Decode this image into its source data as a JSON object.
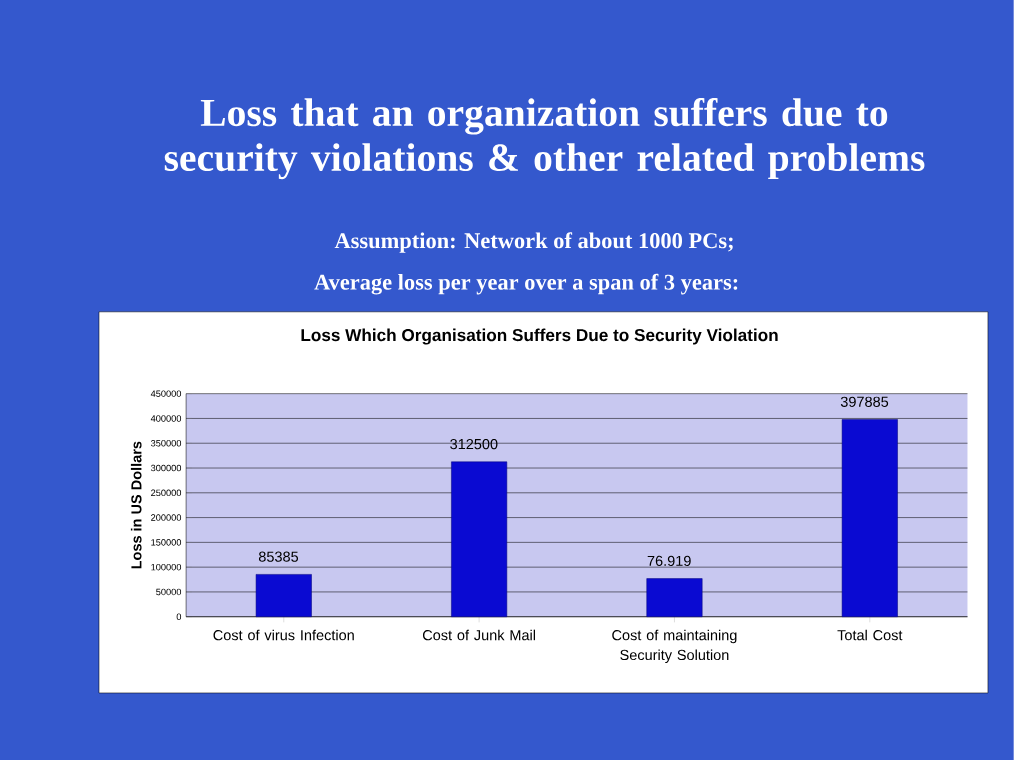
{
  "chart_data": {
    "type": "bar",
    "title": "Loss that an organization suffers due to security violations & other related problems",
    "subtitle": "Assumption:  Network of about 1000 PCs;",
    "annotations": [
      "Average loss per year over a span of 3 years:",
      "Loss Which Organisation Suffers Due to Security Violation"
    ],
    "ylabel": "Loss in US Dollars",
    "categories": [
      "Cost of virus Infection",
      "Cost of Junk Mail",
      "Cost of maintaining Security Solution",
      "Total Cost"
    ],
    "values": [
      85385,
      312500,
      76919,
      397885
    ],
    "value_labels": [
      "85385",
      "312500",
      "76.919",
      "397885"
    ],
    "color": "#0a0ad2",
    "ylim": [
      0,
      450000
    ],
    "yticks": [
      0,
      50000,
      100000,
      150000,
      200000,
      250000,
      300000,
      350000,
      400000,
      450000
    ],
    "grid": "y"
  }
}
